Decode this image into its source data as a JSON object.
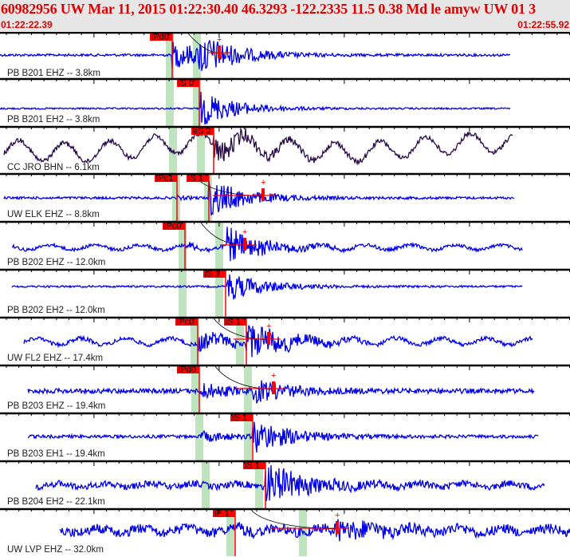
{
  "header": {
    "title": "60982956 UW Mar 11, 2015 01:22:30.40    46.3293 -122.2335 11.5 0.38 Md le amyw UW 01    3",
    "start_time": "01:22:22.39",
    "end_time": "01:22:55.92"
  },
  "colors": {
    "header_text": "#e00000",
    "trace": "#0000ee",
    "trace_alt": "#2a0a4a",
    "pick": "#ff0000",
    "predicted_band": "#bfe3bf"
  },
  "channels": [
    {
      "label": "PB B201 EHZ -- 3.8km",
      "picks": [
        "iPd0"
      ]
    },
    {
      "label": "PB B201 EH2 -- 3.8km",
      "picks": [
        "iS 0"
      ]
    },
    {
      "label": "CC JRO BHN -- 6.1km",
      "picks": [
        "eS 2"
      ]
    },
    {
      "label": "UW ELK EHZ -- 8.8km",
      "picks": [
        "iPc1",
        "iS 1"
      ]
    },
    {
      "label": "PB B202 EHZ -- 12.0km",
      "picks": [
        "iPc0"
      ]
    },
    {
      "label": "PB B202 EH2 -- 12.0km",
      "picks": [
        "iS 1"
      ]
    },
    {
      "label": "UW FL2 EHZ -- 17.4km",
      "picks": [
        "iPc0",
        "iS 1"
      ]
    },
    {
      "label": "PB B203 EHZ -- 19.4km",
      "picks": [
        "iPd0"
      ]
    },
    {
      "label": "PB B203 EH1 -- 19.4km",
      "picks": [
        "iS 1"
      ]
    },
    {
      "label": "PB B204 EH2 -- 22.1km",
      "picks": [
        "iS 1"
      ]
    },
    {
      "label": "UW LVP EHZ -- 32.0km",
      "picks": [
        "iP 1"
      ]
    }
  ]
}
